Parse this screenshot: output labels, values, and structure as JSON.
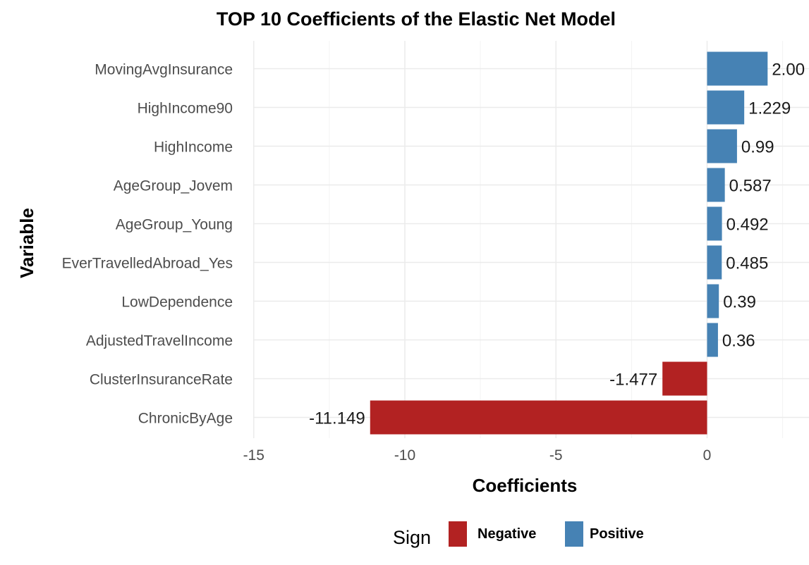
{
  "chart_data": {
    "type": "bar",
    "orientation": "horizontal",
    "title": "TOP 10 Coefficients of the Elastic Net Model",
    "xlabel": "Coefficients",
    "ylabel": "Variable",
    "xlim": [
      -15,
      2.5
    ],
    "x_ticks": [
      -15,
      -10,
      -5,
      0
    ],
    "x_tick_labels": [
      "-15",
      "-10",
      "-5",
      "0"
    ],
    "grid": true,
    "categories": [
      "MovingAvgInsurance",
      "HighIncome90",
      "HighIncome",
      "AgeGroup_Jovem",
      "AgeGroup_Young",
      "EverTravelledAbroad_Yes",
      "LowDependence",
      "AdjustedTravelIncome",
      "ClusterInsuranceRate",
      "ChronicByAge"
    ],
    "values": [
      2.003,
      1.229,
      0.99,
      0.587,
      0.492,
      0.485,
      0.39,
      0.36,
      -1.477,
      -11.149
    ],
    "value_labels": [
      "2.00",
      "1.229",
      "0.99",
      "0.587",
      "0.492",
      "0.485",
      "0.39",
      "0.36",
      "-1.477",
      "-11.149"
    ],
    "signs": [
      "Positive",
      "Positive",
      "Positive",
      "Positive",
      "Positive",
      "Positive",
      "Positive",
      "Positive",
      "Negative",
      "Negative"
    ],
    "legend": {
      "title": "Sign",
      "position": "bottom",
      "items": [
        {
          "label": "Negative",
          "color": "#b22222"
        },
        {
          "label": "Positive",
          "color": "#4682b4"
        }
      ]
    },
    "colors": {
      "Negative": "#b22222",
      "Positive": "#4682b4"
    }
  }
}
